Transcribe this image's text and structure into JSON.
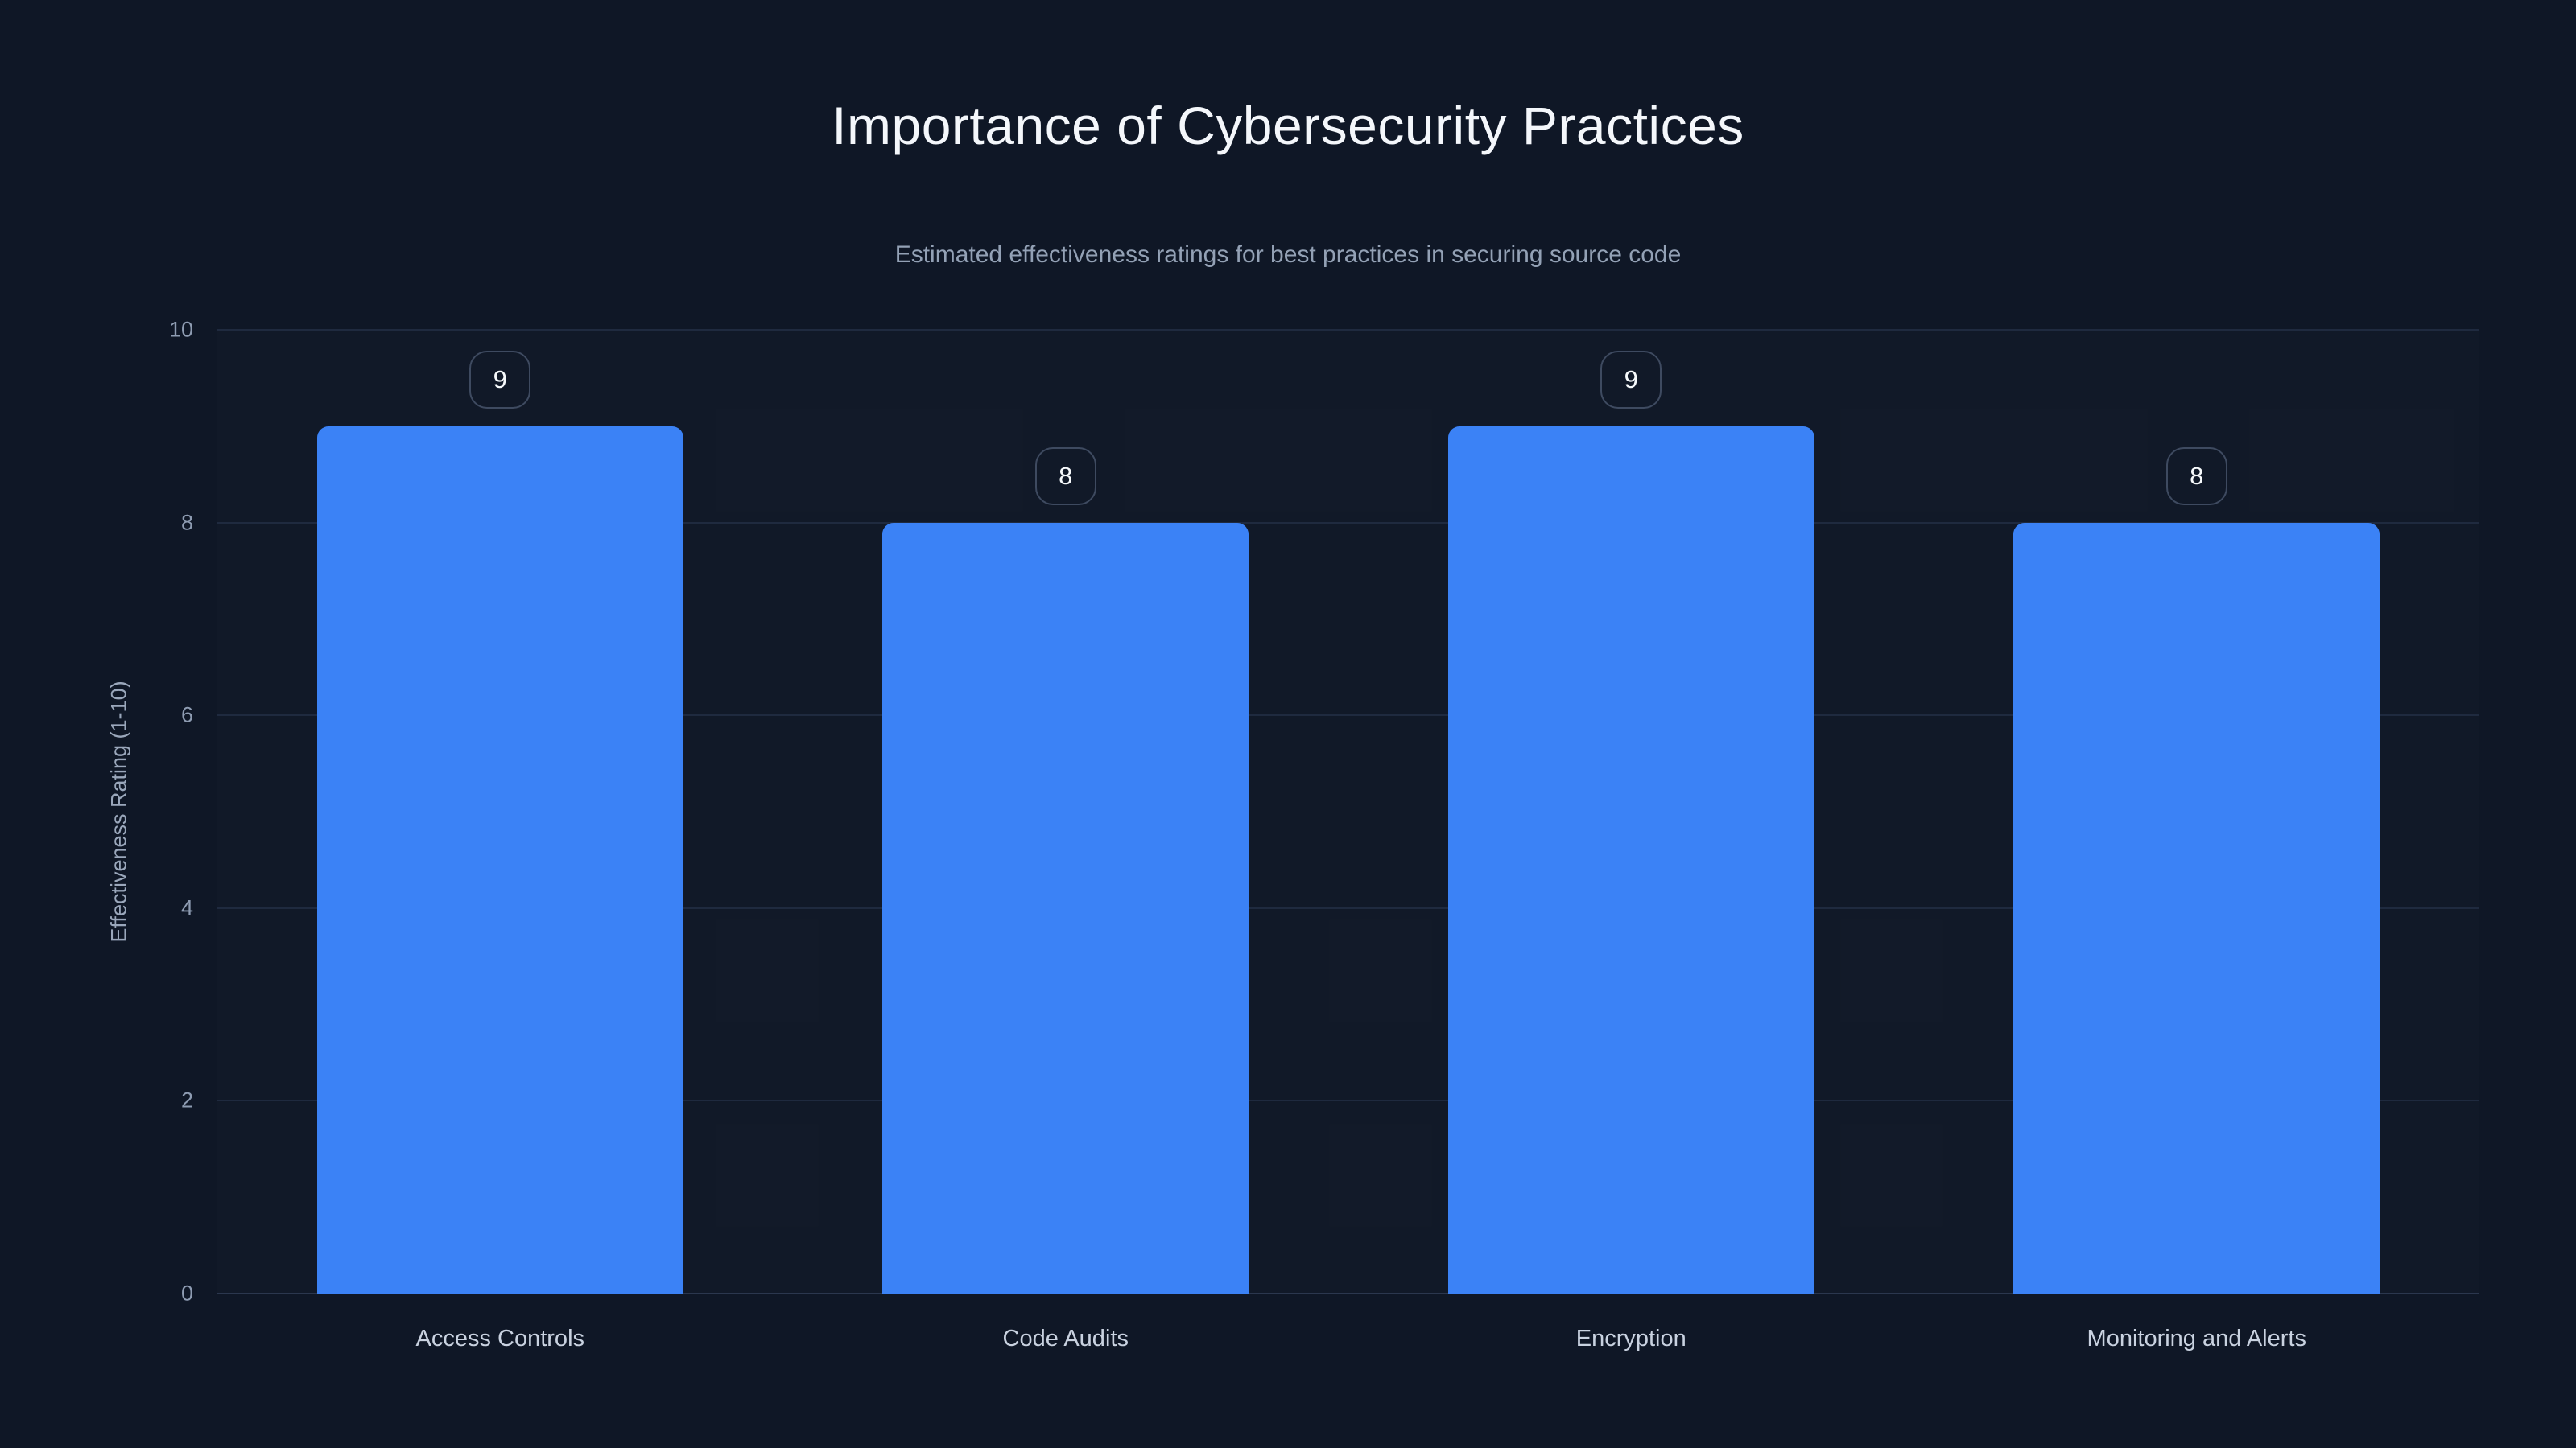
{
  "chart_data": {
    "type": "bar",
    "title": "Importance of Cybersecurity Practices",
    "subtitle": "Estimated effectiveness ratings for best practices in securing source code",
    "categories": [
      "Access Controls",
      "Code Audits",
      "Encryption",
      "Monitoring and Alerts"
    ],
    "values": [
      9,
      8,
      9,
      8
    ],
    "value_labels": [
      "9",
      "8",
      "9",
      "8"
    ],
    "xlabel": "",
    "ylabel": "Effectiveness Rating (1-10)",
    "ylim": [
      0,
      10
    ],
    "yticks": [
      0,
      2,
      4,
      6,
      8,
      10
    ],
    "grid": true,
    "legend": "none",
    "bar_value_badges": true
  },
  "colors": {
    "background": "#0f1726",
    "bar_fill": "#3b82f6",
    "title_text": "#f4f7fb",
    "subtitle_text": "#93a1b5",
    "tick_text": "#8e9cb2",
    "axis_label_text": "#9aa7bb",
    "category_text": "#c9d2e0",
    "gridline": "#1f2a3f",
    "baseline": "#2b374e",
    "badge_border": "#3e4a60",
    "badge_text": "#f7fafc"
  }
}
